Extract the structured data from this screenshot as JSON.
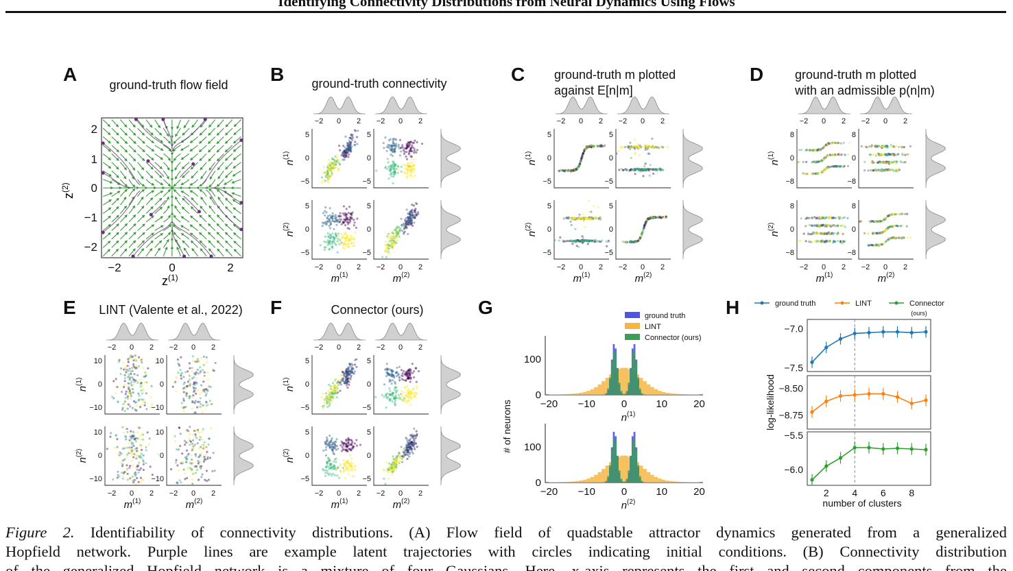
{
  "running_title": "Identifying Connectivity Distributions from Neural Dynamics Using Flows",
  "caption": {
    "label": "Figure 2.",
    "line1": "Identifiability of connectivity distributions. (A) Flow field of quadstable attractor dynamics generated from a generalized",
    "line2": "Hopfield network. Purple lines are example latent trajectories with circles indicating initial conditions. (B) Connectivity distribution",
    "line3": "of the generalized Hopfield network is a mixture of four Gaussians. Here, x-axis represents the first and second components from the"
  },
  "panels": {
    "A": {
      "letter": "A",
      "title": "ground-truth flow field",
      "xlabel": "z(1)",
      "ylabel": "z(2)",
      "xticks": [
        "−2",
        "0",
        "2"
      ],
      "yticks": [
        "2",
        "1",
        "0",
        "−1",
        "−2"
      ]
    },
    "B": {
      "letter": "B",
      "title": "ground-truth connectivity"
    },
    "C": {
      "letter": "C",
      "title_line1": "ground-truth m plotted",
      "title_line2": "against E[n|m]"
    },
    "D": {
      "letter": "D",
      "title_line1": "ground-truth m plotted",
      "title_line2": "with an admissible p(n|m)"
    },
    "E": {
      "letter": "E",
      "title": "LINT (Valente et al., 2022)"
    },
    "F": {
      "letter": "F",
      "title": "Connector (ours)"
    },
    "G": {
      "letter": "G",
      "ylabel": "# of neurons",
      "legend": [
        "ground truth",
        "LINT",
        "Connector (ours)"
      ],
      "xticks": [
        "−20",
        "−10",
        "0",
        "10",
        "20"
      ],
      "yticks": [
        "0",
        "100"
      ],
      "xlabel1": "n(1)",
      "xlabel2": "n(2)"
    },
    "H": {
      "letter": "H",
      "legend": [
        "ground truth",
        "LINT",
        "Connector"
      ],
      "legend_sub": "(ours)",
      "ylabel": "log-likelihood",
      "xlabel": "number of clusters",
      "xticks": [
        "2",
        "4",
        "6",
        "8"
      ],
      "yticks_top": [
        "−7.0",
        "−7.5"
      ],
      "yticks_mid": [
        "−8.50",
        "−8.75"
      ],
      "yticks_bot": [
        "−5.5",
        "−6.0"
      ]
    }
  },
  "chart_data": [
    {
      "type": "line",
      "title": "",
      "xlabel": "number of clusters",
      "ylabel": "log-likelihood",
      "x": [
        1,
        2,
        3,
        4,
        5,
        6,
        7,
        8,
        9
      ],
      "series": [
        {
          "name": "ground truth",
          "values": [
            -7.43,
            -7.24,
            -7.13,
            -7.06,
            -7.05,
            -7.04,
            -7.04,
            -7.05,
            -7.04
          ],
          "ylim": [
            -7.55,
            -6.88
          ],
          "color": "#1f77b4"
        },
        {
          "name": "LINT",
          "values": [
            -8.72,
            -8.62,
            -8.57,
            -8.56,
            -8.55,
            -8.55,
            -8.58,
            -8.64,
            -8.61
          ],
          "ylim": [
            -8.88,
            -8.38
          ],
          "color": "#ff7f0e"
        },
        {
          "name": "Connector",
          "values": [
            -6.15,
            -5.95,
            -5.83,
            -5.68,
            -5.68,
            -5.7,
            -5.69,
            -5.7,
            -5.71
          ],
          "ylim": [
            -6.23,
            -5.45
          ],
          "color": "#2ca02c"
        }
      ],
      "vline_x": 4
    },
    {
      "type": "bar",
      "title": "",
      "xlabel": "n(1)",
      "ylabel": "# of neurons",
      "xlim": [
        -21,
        21
      ],
      "ylim": [
        0,
        165
      ],
      "series": [
        "ground truth",
        "LINT",
        "Connector (ours)"
      ],
      "colors": {
        "ground truth": "#4f55e0",
        "LINT": "#f5b642",
        "Connector (ours)": "#3d9c5a"
      }
    }
  ],
  "colors": {
    "purple": "#6b2f7b",
    "green": "#3c9a3c",
    "viridis_dark": "#440154",
    "viridis_blue": "#31688e",
    "viridis_teal": "#35b779",
    "viridis_yellow": "#fde725"
  }
}
